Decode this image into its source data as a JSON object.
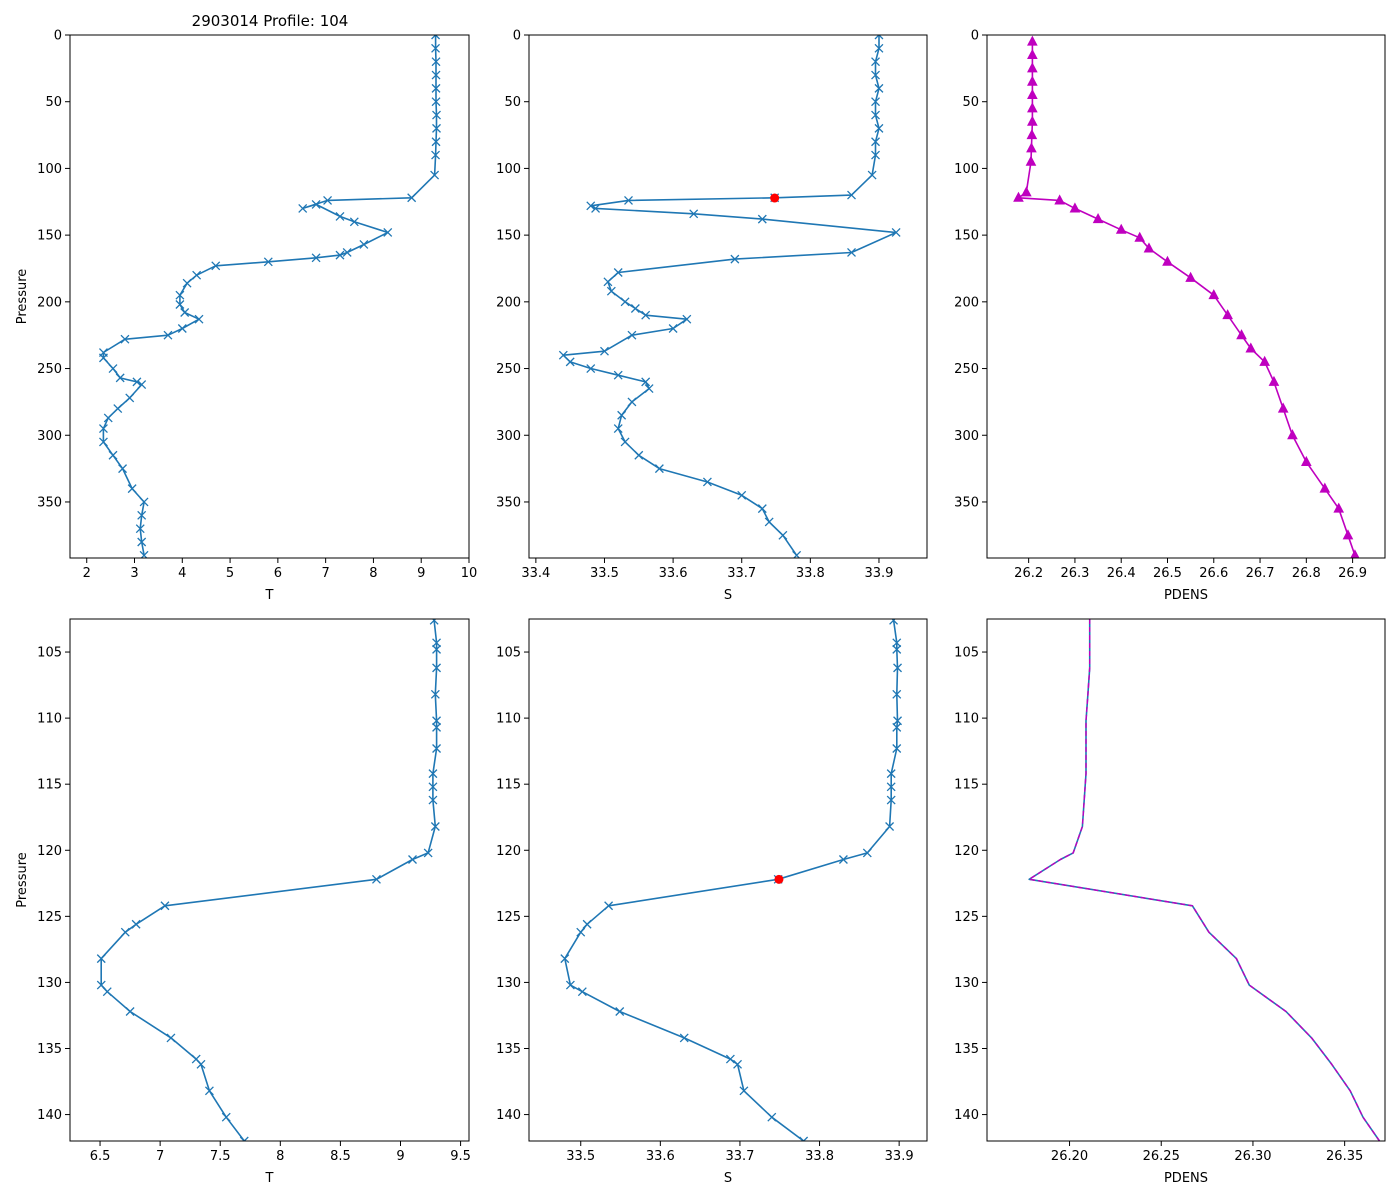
{
  "figure_title": "2903014 Profile: 104",
  "colors": {
    "blue": "#1f77b4",
    "magenta": "#bf00bf",
    "red": "#ff0000",
    "axis": "#000000"
  },
  "chart_data": [
    {
      "id": "top-temperature",
      "type": "line",
      "title": "2903014 Profile: 104",
      "xlabel": "T",
      "ylabel": "Pressure",
      "xlim": [
        1.65,
        10.0
      ],
      "ylim": [
        0,
        392
      ],
      "y_inverted": true,
      "xticks": [
        2,
        3,
        4,
        5,
        6,
        7,
        8,
        9,
        10
      ],
      "yticks": [
        0,
        50,
        100,
        150,
        200,
        250,
        300,
        350
      ],
      "series": [
        {
          "name": "T",
          "marker": "x",
          "color": "#1f77b4",
          "x": [
            9.3,
            9.3,
            9.31,
            9.31,
            9.31,
            9.31,
            9.32,
            9.32,
            9.31,
            9.3,
            9.28,
            8.8,
            7.04,
            6.52,
            6.8,
            7.3,
            7.6,
            8.3,
            7.8,
            7.45,
            7.3,
            6.8,
            5.8,
            4.7,
            4.3,
            4.1,
            3.95,
            3.95,
            4.05,
            4.35,
            4.0,
            3.7,
            2.8,
            2.35,
            2.35,
            2.55,
            2.7,
            3.05,
            3.15,
            2.9,
            2.65,
            2.45,
            2.35,
            2.35,
            2.55,
            2.75,
            2.95,
            3.2,
            3.15,
            3.12,
            3.15,
            3.2
          ],
          "y": [
            0,
            10,
            20,
            30,
            40,
            50,
            60,
            70,
            80,
            90,
            105,
            122,
            124,
            130,
            127,
            136,
            140,
            148,
            157,
            163,
            165,
            167,
            170,
            173,
            180,
            186,
            195,
            202,
            208,
            213,
            220,
            225,
            228,
            238,
            242,
            250,
            257,
            260,
            262,
            272,
            280,
            287,
            295,
            305,
            315,
            325,
            340,
            350,
            360,
            370,
            380,
            390
          ]
        }
      ]
    },
    {
      "id": "top-salinity",
      "type": "line",
      "xlabel": "S",
      "ylabel": "",
      "xlim": [
        33.39,
        33.97
      ],
      "ylim": [
        0,
        392
      ],
      "y_inverted": true,
      "xticks": [
        33.4,
        33.5,
        33.6,
        33.7,
        33.8,
        33.9
      ],
      "yticks": [
        0,
        50,
        100,
        150,
        200,
        250,
        300,
        350
      ],
      "series": [
        {
          "name": "S",
          "marker": "x",
          "color": "#1f77b4",
          "x": [
            33.9,
            33.9,
            33.895,
            33.895,
            33.9,
            33.895,
            33.895,
            33.9,
            33.895,
            33.895,
            33.89,
            33.86,
            33.748,
            33.535,
            33.48,
            33.487,
            33.63,
            33.73,
            33.925,
            33.86,
            33.69,
            33.52,
            33.505,
            33.51,
            33.53,
            33.545,
            33.56,
            33.62,
            33.6,
            33.54,
            33.5,
            33.44,
            33.45,
            33.48,
            33.52,
            33.56,
            33.565,
            33.54,
            33.525,
            33.52,
            33.53,
            33.55,
            33.58,
            33.65,
            33.7,
            33.73,
            33.74,
            33.76,
            33.78
          ],
          "y": [
            0,
            10,
            20,
            30,
            40,
            50,
            60,
            70,
            80,
            90,
            105,
            120,
            122,
            124,
            128,
            130,
            134,
            138,
            148,
            163,
            168,
            178,
            185,
            192,
            200,
            205,
            210,
            213,
            220,
            225,
            237,
            240,
            245,
            250,
            255,
            260,
            265,
            275,
            285,
            295,
            305,
            315,
            325,
            335,
            345,
            355,
            365,
            375,
            390
          ]
        },
        {
          "name": "S highlight",
          "marker": "o",
          "color": "#ff0000",
          "x": [
            33.748
          ],
          "y": [
            122.2
          ]
        }
      ]
    },
    {
      "id": "top-density",
      "type": "line",
      "xlabel": "PDENS",
      "ylabel": "",
      "xlim": [
        26.11,
        26.97
      ],
      "ylim": [
        0,
        392
      ],
      "y_inverted": true,
      "xticks": [
        26.2,
        26.3,
        26.4,
        26.5,
        26.6,
        26.7,
        26.8,
        26.9
      ],
      "yticks": [
        0,
        50,
        100,
        150,
        200,
        250,
        300,
        350
      ],
      "series": [
        {
          "name": "PDENS",
          "marker": "^",
          "color": "#bf00bf",
          "x": [
            26.208,
            26.208,
            26.208,
            26.208,
            26.208,
            26.208,
            26.208,
            26.207,
            26.206,
            26.205,
            26.195,
            26.178,
            26.267,
            26.3,
            26.35,
            26.4,
            26.44,
            26.46,
            26.5,
            26.55,
            26.6,
            26.63,
            26.66,
            26.68,
            26.71,
            26.73,
            26.75,
            26.77,
            26.8,
            26.84,
            26.87,
            26.89,
            26.905
          ],
          "y": [
            5,
            15,
            25,
            35,
            45,
            55,
            65,
            75,
            85,
            95,
            118,
            122,
            124,
            130,
            138,
            146,
            152,
            160,
            170,
            182,
            195,
            210,
            225,
            235,
            245,
            260,
            280,
            300,
            320,
            340,
            355,
            375,
            390
          ]
        }
      ]
    },
    {
      "id": "bottom-temperature",
      "type": "line",
      "xlabel": "T",
      "ylabel": "Pressure",
      "xlim": [
        6.25,
        9.57
      ],
      "ylim": [
        102.5,
        142
      ],
      "y_inverted": true,
      "xticks": [
        6.5,
        7.0,
        7.5,
        8.0,
        8.5,
        9.0,
        9.5
      ],
      "yticks": [
        105,
        110,
        115,
        120,
        125,
        130,
        135,
        140
      ],
      "series": [
        {
          "name": "T",
          "marker": "x",
          "color": "#1f77b4",
          "x": [
            9.28,
            9.3,
            9.3,
            9.3,
            9.29,
            9.3,
            9.3,
            9.3,
            9.27,
            9.27,
            9.27,
            9.29,
            9.23,
            9.1,
            8.8,
            7.04,
            6.8,
            6.71,
            6.51,
            6.51,
            6.56,
            6.75,
            7.09,
            7.3,
            7.34,
            7.41,
            7.55,
            7.7
          ],
          "y": [
            102.6,
            104.3,
            104.8,
            106.2,
            108.2,
            110.2,
            110.7,
            112.3,
            114.2,
            115.2,
            116.2,
            118.2,
            120.2,
            120.7,
            122.2,
            124.2,
            125.6,
            126.2,
            128.2,
            130.2,
            130.7,
            132.2,
            134.2,
            135.8,
            136.2,
            138.2,
            140.2,
            142
          ]
        }
      ]
    },
    {
      "id": "bottom-salinity",
      "type": "line",
      "xlabel": "S",
      "ylabel": "",
      "xlim": [
        33.435,
        33.935
      ],
      "ylim": [
        102.5,
        142
      ],
      "y_inverted": true,
      "xticks": [
        33.5,
        33.6,
        33.7,
        33.8,
        33.9
      ],
      "yticks": [
        105,
        110,
        115,
        120,
        125,
        130,
        135,
        140
      ],
      "series": [
        {
          "name": "S",
          "marker": "x",
          "color": "#1f77b4",
          "x": [
            33.893,
            33.897,
            33.897,
            33.898,
            33.897,
            33.898,
            33.897,
            33.897,
            33.89,
            33.89,
            33.89,
            33.888,
            33.86,
            33.83,
            33.748,
            33.535,
            33.508,
            33.5,
            33.48,
            33.487,
            33.502,
            33.549,
            33.63,
            33.688,
            33.697,
            33.705,
            33.74,
            33.78
          ],
          "y": [
            102.6,
            104.3,
            104.8,
            106.2,
            108.2,
            110.2,
            110.7,
            112.3,
            114.2,
            115.2,
            116.2,
            118.2,
            120.2,
            120.7,
            122.2,
            124.2,
            125.6,
            126.2,
            128.2,
            130.2,
            130.7,
            132.2,
            134.2,
            135.8,
            136.2,
            138.2,
            140.2,
            142
          ]
        },
        {
          "name": "S highlight",
          "marker": "o",
          "color": "#ff0000",
          "x": [
            33.749
          ],
          "y": [
            122.2
          ]
        }
      ]
    },
    {
      "id": "bottom-density",
      "type": "line",
      "xlabel": "PDENS",
      "ylabel": "",
      "xlim": [
        26.155,
        26.372
      ],
      "ylim": [
        102.5,
        142
      ],
      "y_inverted": true,
      "xticks": [
        26.2,
        26.25,
        26.3,
        26.35
      ],
      "xtick_labels": [
        "26.20",
        "26.25",
        "26.30",
        "26.35"
      ],
      "yticks": [
        105,
        110,
        115,
        120,
        125,
        130,
        135,
        140
      ],
      "series": [
        {
          "name": "PDENS",
          "marker": "none",
          "color": "#1f77b4",
          "overlay_dashed_color": "#bf00bf",
          "x": [
            26.211,
            26.211,
            26.211,
            26.21,
            26.209,
            26.209,
            26.209,
            26.208,
            26.207,
            26.202,
            26.195,
            26.178,
            26.267,
            26.276,
            26.291,
            26.298,
            26.318,
            26.332,
            26.343,
            26.353,
            26.36,
            26.369
          ],
          "y": [
            102.5,
            104.3,
            106.2,
            108.2,
            110.2,
            112.3,
            114.2,
            116.2,
            118.2,
            120.2,
            120.7,
            122.2,
            124.2,
            126.2,
            128.2,
            130.2,
            132.2,
            134.2,
            136.2,
            138.2,
            140.2,
            142
          ]
        }
      ]
    }
  ]
}
